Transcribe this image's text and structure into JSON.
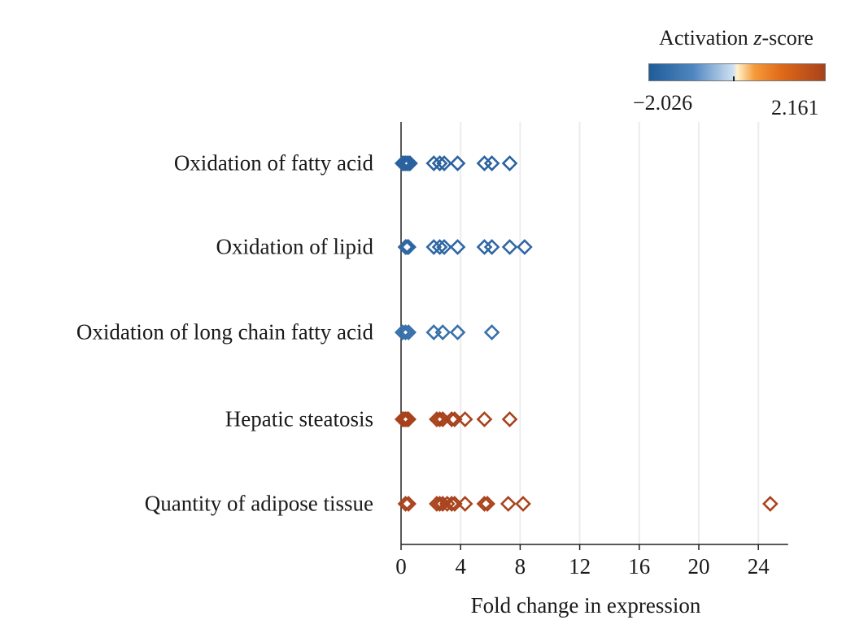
{
  "legend": {
    "title_prefix": "Activation ",
    "title_z": "z",
    "title_suffix": "-score",
    "min_label": "−2.026",
    "max_label": "2.161",
    "low_color": "#1f5c99",
    "mid_color": "#cfe2f3",
    "high_color": "#a8421c"
  },
  "chart_data": {
    "type": "scatter",
    "xlabel": "Fold change in expression",
    "ylabel": "",
    "xlim": [
      0,
      26
    ],
    "xticks": [
      0,
      4,
      8,
      12,
      16,
      20,
      24
    ],
    "grid": "vertical",
    "marker": "hollow-diamond",
    "categories": [
      "Oxidation of fatty acid",
      "Oxidation of lipid",
      "Oxidation of long chain fatty acid",
      "Hepatic steatosis",
      "Quantity of adipose tissue"
    ],
    "series": [
      {
        "category": "Oxidation of fatty acid",
        "color": "#2a62a0",
        "x": [
          0.1,
          0.2,
          0.3,
          0.4,
          0.5,
          0.6,
          2.2,
          2.6,
          2.9,
          3.8,
          5.6,
          6.1,
          7.3
        ]
      },
      {
        "category": "Oxidation of lipid",
        "color": "#2f67a3",
        "x": [
          0.3,
          0.4,
          0.5,
          2.2,
          2.6,
          2.9,
          3.8,
          5.6,
          6.1,
          7.3,
          8.3
        ]
      },
      {
        "category": "Oxidation of long chain fatty acid",
        "color": "#3770ab",
        "x": [
          0.1,
          0.3,
          0.5,
          2.2,
          2.8,
          3.8,
          6.1
        ]
      },
      {
        "category": "Hepatic steatosis",
        "color": "#a8421c",
        "x": [
          0.1,
          0.2,
          0.3,
          0.4,
          0.5,
          2.4,
          2.6,
          2.8,
          3.4,
          3.6,
          4.3,
          5.6,
          7.3
        ]
      },
      {
        "category": "Quantity of adipose tissue",
        "color": "#a9441e",
        "x": [
          0.3,
          0.5,
          2.4,
          2.6,
          2.8,
          3.1,
          3.4,
          3.6,
          4.3,
          5.6,
          5.8,
          7.2,
          8.2,
          24.8
        ]
      }
    ]
  }
}
